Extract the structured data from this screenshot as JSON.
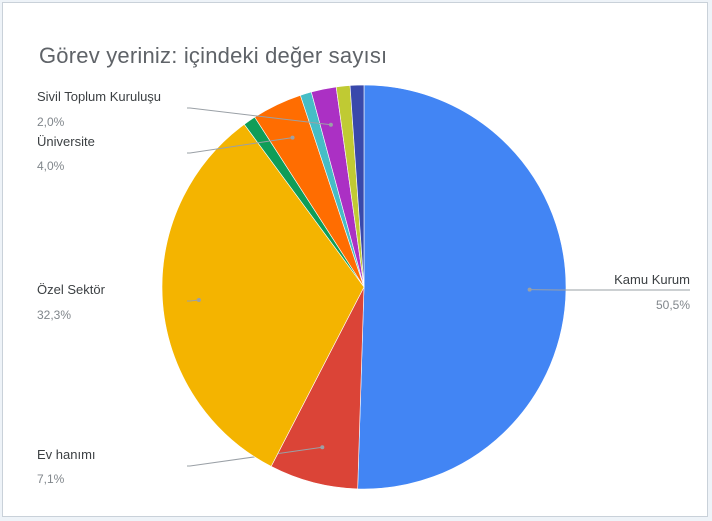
{
  "chart_data": {
    "type": "pie",
    "title": "Görev yeriniz: içindeki değer sayısı",
    "slices": [
      {
        "label": "Kamu Kurum",
        "value": 50.5,
        "pct_label": "50,5%",
        "color": "#4285f4"
      },
      {
        "label": "Ev hanımı",
        "value": 7.1,
        "pct_label": "7,1%",
        "color": "#db4437"
      },
      {
        "label": "Özel Sektör",
        "value": 32.3,
        "pct_label": "32,3%",
        "color": "#f4b400"
      },
      {
        "label": "",
        "value": 1.0,
        "pct_label": "",
        "color": "#0f9d58"
      },
      {
        "label": "Üniversite",
        "value": 4.0,
        "pct_label": "4,0%",
        "color": "#ff6d01"
      },
      {
        "label": "",
        "value": 0.9,
        "pct_label": "",
        "color": "#46bdc6"
      },
      {
        "label": "Sivil Toplum Kuruluşu",
        "value": 2.0,
        "pct_label": "2,0%",
        "color": "#ab30c4"
      },
      {
        "label": "",
        "value": 1.1,
        "pct_label": "",
        "color": "#c0ca33"
      },
      {
        "label": "",
        "value": 1.1,
        "pct_label": "",
        "color": "#3949ab"
      }
    ]
  }
}
